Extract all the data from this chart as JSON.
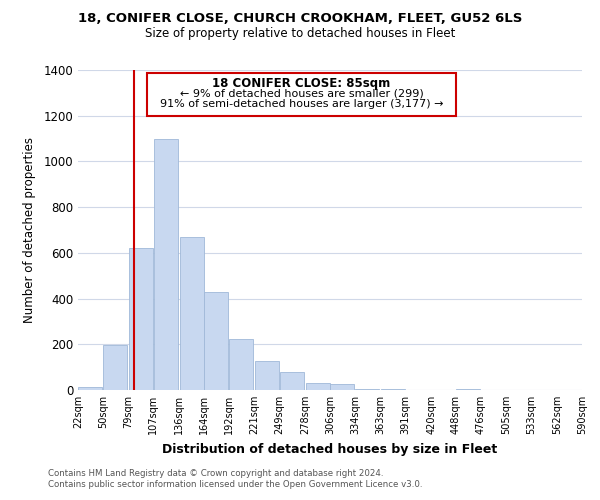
{
  "title": "18, CONIFER CLOSE, CHURCH CROOKHAM, FLEET, GU52 6LS",
  "subtitle": "Size of property relative to detached houses in Fleet",
  "xlabel": "Distribution of detached houses by size in Fleet",
  "ylabel": "Number of detached properties",
  "bar_color": "#c8d8f0",
  "bar_edge_color": "#a0b8d8",
  "vline_x": 85,
  "vline_color": "#cc0000",
  "bins_left": [
    22,
    50,
    79,
    107,
    136,
    164,
    192,
    221,
    249,
    278,
    306,
    334,
    363,
    391,
    420,
    448,
    476,
    505,
    533,
    562
  ],
  "bin_width": 28,
  "counts": [
    15,
    195,
    620,
    1100,
    670,
    430,
    225,
    125,
    80,
    30,
    25,
    5,
    5,
    0,
    0,
    5,
    0,
    0,
    0,
    0
  ],
  "xlim": [
    22,
    590
  ],
  "ylim": [
    0,
    1400
  ],
  "yticks": [
    0,
    200,
    400,
    600,
    800,
    1000,
    1200,
    1400
  ],
  "xtick_labels": [
    "22sqm",
    "50sqm",
    "79sqm",
    "107sqm",
    "136sqm",
    "164sqm",
    "192sqm",
    "221sqm",
    "249sqm",
    "278sqm",
    "306sqm",
    "334sqm",
    "363sqm",
    "391sqm",
    "420sqm",
    "448sqm",
    "476sqm",
    "505sqm",
    "533sqm",
    "562sqm",
    "590sqm"
  ],
  "xtick_positions": [
    22,
    50,
    79,
    107,
    136,
    164,
    192,
    221,
    249,
    278,
    306,
    334,
    363,
    391,
    420,
    448,
    476,
    505,
    533,
    562,
    590
  ],
  "annotation_title": "18 CONIFER CLOSE: 85sqm",
  "annotation_line1": "← 9% of detached houses are smaller (299)",
  "annotation_line2": "91% of semi-detached houses are larger (3,177) →",
  "annotation_box_color": "#ffffff",
  "annotation_box_edge": "#cc0000",
  "footer1": "Contains HM Land Registry data © Crown copyright and database right 2024.",
  "footer2": "Contains public sector information licensed under the Open Government Licence v3.0.",
  "background_color": "#ffffff",
  "grid_color": "#d0d8e8"
}
